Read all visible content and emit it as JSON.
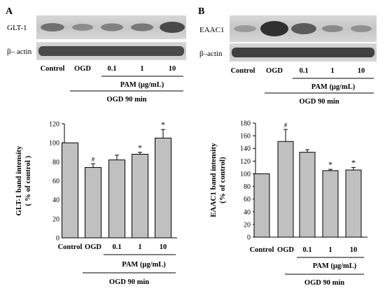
{
  "panels": [
    {
      "letter": "A",
      "blot_labels": [
        "GLT-1",
        "β– actin"
      ],
      "lane_labels": [
        "Control",
        "OGD",
        "0.1",
        "1",
        "10"
      ],
      "treatment_label": "PAM (μg/mL)",
      "condition_label": "OGD 90 min"
    },
    {
      "letter": "B",
      "blot_labels": [
        "EAAC1",
        "β–actin"
      ],
      "lane_labels": [
        "Control",
        "OGD",
        "0.1",
        "1",
        "10"
      ],
      "treatment_label": "PAM (μg/mL)",
      "condition_label": "OGD 90 min"
    }
  ],
  "chart_data": [
    {
      "type": "bar",
      "categories": [
        "Control",
        "OGD",
        "0.1",
        "1",
        "10"
      ],
      "values": [
        100,
        74,
        82,
        88,
        105
      ],
      "errors": [
        0,
        4,
        5,
        2,
        9
      ],
      "annotations": [
        "",
        "#",
        "",
        "*",
        "*"
      ],
      "ylabel": "GLT-1 band intensity\n( % of control )",
      "ylim": [
        0,
        120
      ],
      "yticks": [
        0,
        20,
        40,
        60,
        80,
        100,
        120
      ],
      "bar_color": "#c0c0c0",
      "treatment_label": "PAM (μg/mL)",
      "condition_label": "OGD 90 min"
    },
    {
      "type": "bar",
      "categories": [
        "Control",
        "OGD",
        "0.1",
        "1",
        "10"
      ],
      "values": [
        100,
        151,
        134,
        105,
        106
      ],
      "errors": [
        0,
        19,
        4,
        2,
        4
      ],
      "annotations": [
        "",
        "#",
        "",
        "*",
        "*"
      ],
      "ylabel": "EAAC1 band intensity\n(% of control)",
      "ylim": [
        0,
        180
      ],
      "yticks": [
        0,
        20,
        40,
        60,
        80,
        100,
        120,
        140,
        160,
        180
      ],
      "bar_color": "#c0c0c0",
      "treatment_label": "PAM (μg/mL)",
      "condition_label": "OGD 90 min"
    }
  ]
}
